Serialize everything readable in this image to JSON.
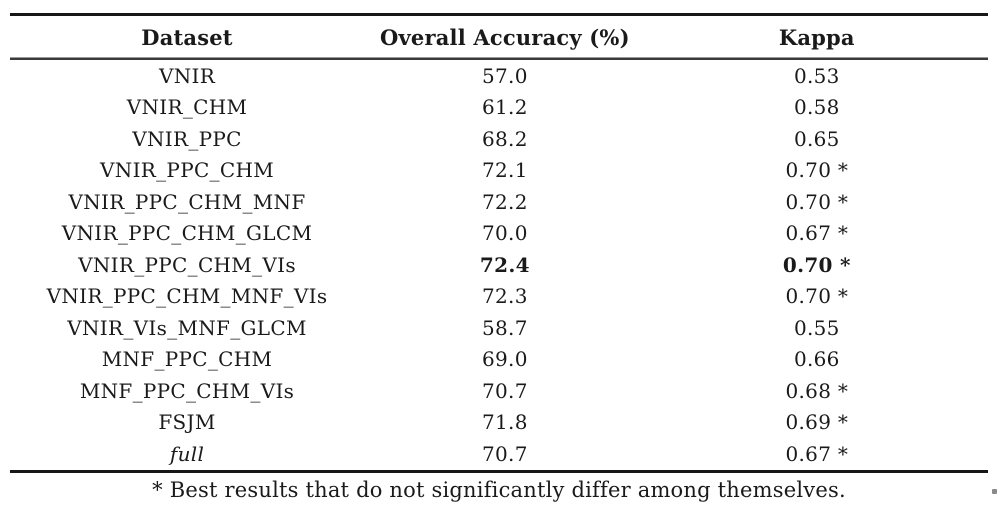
{
  "chart_data": {
    "type": "table",
    "columns": [
      "Dataset",
      "Overall Accuracy (%)",
      "Kappa"
    ],
    "rows": [
      {
        "dataset": "VNIR",
        "accuracy": "57.0",
        "kappa": "0.53"
      },
      {
        "dataset": "VNIR_CHM",
        "accuracy": "61.2",
        "kappa": "0.58"
      },
      {
        "dataset": "VNIR_PPC",
        "accuracy": "68.2",
        "kappa": "0.65"
      },
      {
        "dataset": "VNIR_PPC_CHM",
        "accuracy": "72.1",
        "kappa": "0.70 *"
      },
      {
        "dataset": "VNIR_PPC_CHM_MNF",
        "accuracy": "72.2",
        "kappa": "0.70 *"
      },
      {
        "dataset": "VNIR_PPC_CHM_GLCM",
        "accuracy": "70.0",
        "kappa": "0.67 *"
      },
      {
        "dataset": "VNIR_PPC_CHM_VIs",
        "accuracy": "72.4",
        "kappa": "0.70 *",
        "bold_values": true
      },
      {
        "dataset": "VNIR_PPC_CHM_MNF_VIs",
        "accuracy": "72.3",
        "kappa": "0.70 *"
      },
      {
        "dataset": "VNIR_VIs_MNF_GLCM",
        "accuracy": "58.7",
        "kappa": "0.55"
      },
      {
        "dataset": "MNF_PPC_CHM",
        "accuracy": "69.0",
        "kappa": "0.66"
      },
      {
        "dataset": "MNF_PPC_CHM_VIs",
        "accuracy": "70.7",
        "kappa": "0.68 *"
      },
      {
        "dataset": "FSJM",
        "accuracy": "71.8",
        "kappa": "0.69 *"
      },
      {
        "dataset": "full",
        "accuracy": "70.7",
        "kappa": "0.67 *",
        "italic_dataset": true
      }
    ],
    "footnote": "* Best results that do not significantly differ among themselves."
  },
  "colors": {
    "text": "#1a1a1a",
    "thick_rule": "#171717",
    "mid_rule": "#3a3a3a"
  }
}
